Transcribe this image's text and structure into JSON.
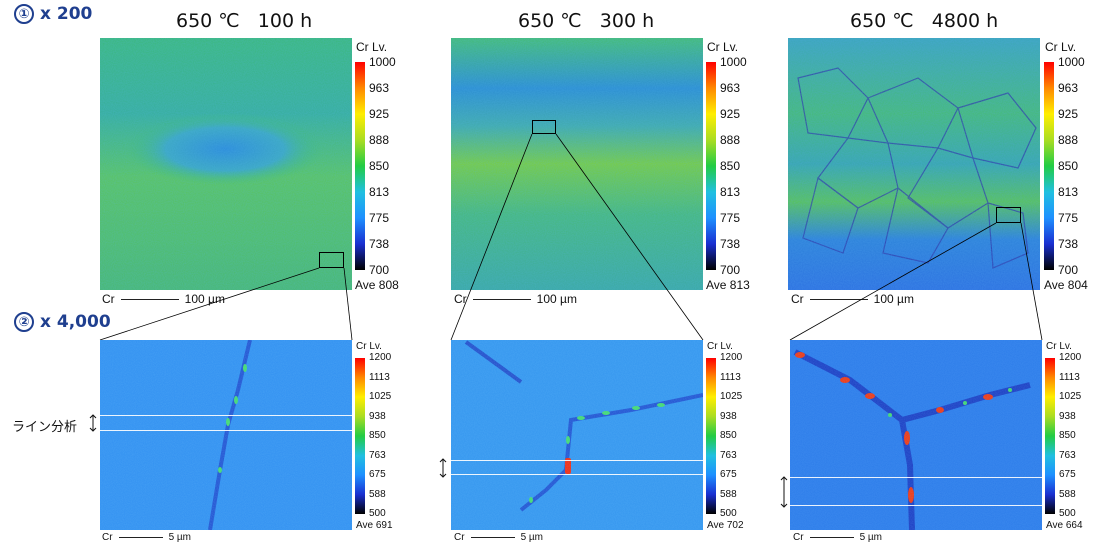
{
  "row1": {
    "num": "①",
    "text": "x 200"
  },
  "row2": {
    "num": "②",
    "text": "x 4,000"
  },
  "conditions": [
    "650 ℃   100 h",
    "650 ℃   300 h",
    "650 ℃   4800 h"
  ],
  "colorbar_title": "Cr Lv.",
  "top_ticks": [
    "1000",
    "963",
    "925",
    "888",
    "850",
    "813",
    "775",
    "738",
    "700"
  ],
  "bottom_ticks": [
    "1200",
    "1113",
    "1025",
    "938",
    "850",
    "763",
    "675",
    "588",
    "500"
  ],
  "top_ave": [
    "Ave 808",
    "Ave 813",
    "Ave 804"
  ],
  "bottom_ave": [
    "Ave 691",
    "Ave 702",
    "Ave 664"
  ],
  "element": "Cr",
  "top_scale": "100 µm",
  "bottom_scale": "5 µm",
  "line_analysis_label": "ライン分析",
  "colors": {
    "row_label": "#1f3f8f",
    "colormap": [
      "#000000",
      "#1a2fd0",
      "#1e90ff",
      "#20c0e0",
      "#22cc44",
      "#aadd22",
      "#ffee00",
      "#ff8800",
      "#ff0000"
    ]
  },
  "icons": {
    "line_marker": "double-arrow-icon"
  }
}
